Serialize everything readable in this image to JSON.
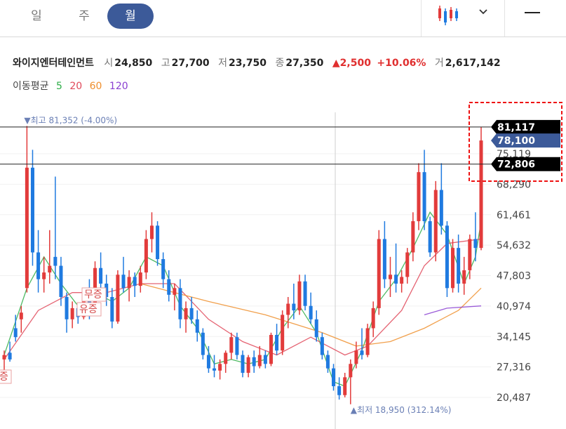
{
  "tabs": [
    {
      "label": "일"
    },
    {
      "label": "주"
    },
    {
      "label": "월",
      "active": true
    }
  ],
  "icons": {
    "chart_type": "candlestick-icon",
    "dropdown": "chevron-down-icon",
    "menu": "menu-icon"
  },
  "stock": {
    "name": "와이지엔터테인먼트",
    "open_label": "시",
    "open": "24,850",
    "high_label": "고",
    "high": "27,700",
    "low_label": "저",
    "low": "23,750",
    "close_label": "종",
    "close": "27,350",
    "change": "2,500",
    "change_pct": "+10.06%",
    "volume_label": "거",
    "volume": "2,617,142"
  },
  "ma_legend": {
    "label": "이동평균",
    "periods": [
      {
        "p": "5",
        "color": "#2fae49"
      },
      {
        "p": "20",
        "color": "#e0495a"
      },
      {
        "p": "60",
        "color": "#ef8f2d"
      },
      {
        "p": "120",
        "color": "#8a3fd1"
      }
    ]
  },
  "colors": {
    "up": "#e23b3b",
    "down": "#1f7ae0",
    "accent": "#3c5a99",
    "badge": "#000000"
  },
  "chart_data": {
    "type": "candlestick",
    "y_ticks": [
      "75,119",
      "68,290",
      "61,461",
      "54,632",
      "47,803",
      "40,974",
      "34,145",
      "27,316",
      "20,487"
    ],
    "ylim": [
      18000,
      82500
    ],
    "max_annotation": {
      "text": "최고 81,352 (-4.00%)",
      "value": 81352,
      "index": 4
    },
    "min_annotation": {
      "text": "최저 18,950 (312.14%)",
      "value": 18950,
      "index": 61
    },
    "price_levels": [
      {
        "label": "81,117",
        "value": 81117,
        "style": "black"
      },
      {
        "label": "78,100",
        "value": 78100,
        "style": "blue"
      },
      {
        "label": "72,806",
        "value": 72806,
        "style": "black"
      }
    ],
    "annotations": [
      {
        "text": "무증",
        "index": 15
      },
      {
        "text": "유증",
        "index": 15
      },
      {
        "text": "증",
        "index": 0
      }
    ],
    "candles": [
      {
        "o": 29000,
        "h": 31000,
        "l": 26000,
        "c": 30000
      },
      {
        "o": 30500,
        "h": 33000,
        "l": 28500,
        "c": 29000
      },
      {
        "o": 36000,
        "h": 39000,
        "l": 33000,
        "c": 34000
      },
      {
        "o": 38000,
        "h": 41000,
        "l": 35000,
        "c": 39500
      },
      {
        "o": 45000,
        "h": 81352,
        "l": 44000,
        "c": 72000
      },
      {
        "o": 72000,
        "h": 76000,
        "l": 50000,
        "c": 53000
      },
      {
        "o": 53000,
        "h": 58000,
        "l": 44000,
        "c": 47000
      },
      {
        "o": 47000,
        "h": 52000,
        "l": 44000,
        "c": 48500
      },
      {
        "o": 48500,
        "h": 58000,
        "l": 46000,
        "c": 50000
      },
      {
        "o": 52000,
        "h": 70000,
        "l": 47000,
        "c": 50000
      },
      {
        "o": 50000,
        "h": 52000,
        "l": 41000,
        "c": 43000
      },
      {
        "o": 43000,
        "h": 44000,
        "l": 35000,
        "c": 38000
      },
      {
        "o": 38000,
        "h": 42000,
        "l": 36000,
        "c": 40500
      },
      {
        "o": 40500,
        "h": 41000,
        "l": 37000,
        "c": 38500
      },
      {
        "o": 38500,
        "h": 45000,
        "l": 38000,
        "c": 44000
      },
      {
        "o": 44000,
        "h": 47000,
        "l": 38000,
        "c": 41000
      },
      {
        "o": 41000,
        "h": 51000,
        "l": 40000,
        "c": 49500
      },
      {
        "o": 49500,
        "h": 53000,
        "l": 45000,
        "c": 46000
      },
      {
        "o": 46000,
        "h": 48000,
        "l": 41000,
        "c": 43000
      },
      {
        "o": 43000,
        "h": 45000,
        "l": 36000,
        "c": 37500
      },
      {
        "o": 37500,
        "h": 49000,
        "l": 37000,
        "c": 48000
      },
      {
        "o": 48000,
        "h": 52000,
        "l": 44000,
        "c": 45000
      },
      {
        "o": 45000,
        "h": 49000,
        "l": 42000,
        "c": 47500
      },
      {
        "o": 47500,
        "h": 48500,
        "l": 43000,
        "c": 45500
      },
      {
        "o": 45500,
        "h": 50000,
        "l": 44000,
        "c": 48500
      },
      {
        "o": 48500,
        "h": 58000,
        "l": 47000,
        "c": 56000
      },
      {
        "o": 56000,
        "h": 62000,
        "l": 53000,
        "c": 59000
      },
      {
        "o": 59000,
        "h": 60000,
        "l": 50000,
        "c": 51500
      },
      {
        "o": 51500,
        "h": 53000,
        "l": 45000,
        "c": 47000
      },
      {
        "o": 47000,
        "h": 49000,
        "l": 42000,
        "c": 43500
      },
      {
        "o": 43500,
        "h": 46000,
        "l": 40000,
        "c": 45000
      },
      {
        "o": 45000,
        "h": 47000,
        "l": 36000,
        "c": 38000
      },
      {
        "o": 38000,
        "h": 42000,
        "l": 35000,
        "c": 40500
      },
      {
        "o": 40500,
        "h": 43000,
        "l": 37000,
        "c": 38000
      },
      {
        "o": 38000,
        "h": 40000,
        "l": 33000,
        "c": 35000
      },
      {
        "o": 35000,
        "h": 36000,
        "l": 29000,
        "c": 30000
      },
      {
        "o": 30000,
        "h": 32000,
        "l": 26000,
        "c": 27000
      },
      {
        "o": 27000,
        "h": 30000,
        "l": 25000,
        "c": 26500
      },
      {
        "o": 26500,
        "h": 29000,
        "l": 24500,
        "c": 28000
      },
      {
        "o": 28000,
        "h": 31000,
        "l": 26000,
        "c": 30500
      },
      {
        "o": 30500,
        "h": 35000,
        "l": 29000,
        "c": 34000
      },
      {
        "o": 34000,
        "h": 35000,
        "l": 29000,
        "c": 30000
      },
      {
        "o": 30000,
        "h": 31000,
        "l": 25000,
        "c": 26000
      },
      {
        "o": 26000,
        "h": 30000,
        "l": 25000,
        "c": 29500
      },
      {
        "o": 29500,
        "h": 31000,
        "l": 26000,
        "c": 27500
      },
      {
        "o": 27500,
        "h": 32000,
        "l": 27000,
        "c": 30000
      },
      {
        "o": 30000,
        "h": 31000,
        "l": 27000,
        "c": 28000
      },
      {
        "o": 28000,
        "h": 35000,
        "l": 27500,
        "c": 34500
      },
      {
        "o": 34500,
        "h": 37000,
        "l": 30000,
        "c": 31000
      },
      {
        "o": 31000,
        "h": 40000,
        "l": 30000,
        "c": 39000
      },
      {
        "o": 39000,
        "h": 43000,
        "l": 36000,
        "c": 41500
      },
      {
        "o": 41500,
        "h": 46000,
        "l": 38000,
        "c": 40000
      },
      {
        "o": 40000,
        "h": 48000,
        "l": 39000,
        "c": 46500
      },
      {
        "o": 46500,
        "h": 48000,
        "l": 40000,
        "c": 41000
      },
      {
        "o": 41000,
        "h": 44000,
        "l": 37000,
        "c": 38000
      },
      {
        "o": 38000,
        "h": 40000,
        "l": 33000,
        "c": 34000
      },
      {
        "o": 34000,
        "h": 35000,
        "l": 29000,
        "c": 30000
      },
      {
        "o": 30000,
        "h": 31000,
        "l": 26000,
        "c": 27000
      },
      {
        "o": 27000,
        "h": 28000,
        "l": 22000,
        "c": 23000
      },
      {
        "o": 23000,
        "h": 25000,
        "l": 20000,
        "c": 21000
      },
      {
        "o": 21000,
        "h": 26000,
        "l": 20500,
        "c": 25000
      },
      {
        "o": 25000,
        "h": 29000,
        "l": 18950,
        "c": 28000
      },
      {
        "o": 28000,
        "h": 33000,
        "l": 27000,
        "c": 31000
      },
      {
        "o": 31000,
        "h": 36000,
        "l": 29000,
        "c": 30000
      },
      {
        "o": 30000,
        "h": 37000,
        "l": 29500,
        "c": 36000
      },
      {
        "o": 36000,
        "h": 42000,
        "l": 34000,
        "c": 40500
      },
      {
        "o": 40500,
        "h": 58000,
        "l": 39000,
        "c": 56000
      },
      {
        "o": 56000,
        "h": 60000,
        "l": 45000,
        "c": 47000
      },
      {
        "o": 47000,
        "h": 52000,
        "l": 43000,
        "c": 48000
      },
      {
        "o": 48000,
        "h": 55000,
        "l": 44000,
        "c": 46000
      },
      {
        "o": 46000,
        "h": 49000,
        "l": 44000,
        "c": 47500
      },
      {
        "o": 47500,
        "h": 54000,
        "l": 46000,
        "c": 53000
      },
      {
        "o": 53000,
        "h": 62000,
        "l": 51000,
        "c": 60000
      },
      {
        "o": 60000,
        "h": 73000,
        "l": 58000,
        "c": 71000
      },
      {
        "o": 71000,
        "h": 76000,
        "l": 58000,
        "c": 60000
      },
      {
        "o": 60000,
        "h": 61000,
        "l": 52000,
        "c": 53000
      },
      {
        "o": 53000,
        "h": 69000,
        "l": 51000,
        "c": 67000
      },
      {
        "o": 67000,
        "h": 73000,
        "l": 57000,
        "c": 59000
      },
      {
        "o": 59000,
        "h": 60000,
        "l": 43000,
        "c": 45000
      },
      {
        "o": 45000,
        "h": 56000,
        "l": 44000,
        "c": 54000
      },
      {
        "o": 54000,
        "h": 57000,
        "l": 44000,
        "c": 46000
      },
      {
        "o": 46000,
        "h": 52000,
        "l": 43500,
        "c": 49000
      },
      {
        "o": 49000,
        "h": 57000,
        "l": 47000,
        "c": 56000
      },
      {
        "o": 56000,
        "h": 62000,
        "l": 51000,
        "c": 54000
      },
      {
        "o": 54000,
        "h": 81117,
        "l": 53500,
        "c": 78100
      }
    ],
    "ma_lines": [
      {
        "period": 5,
        "color": "#2fae49",
        "values": [
          [
            0,
            30000
          ],
          [
            4,
            45000
          ],
          [
            7,
            52000
          ],
          [
            10,
            46000
          ],
          [
            13,
            41000
          ],
          [
            16,
            44000
          ],
          [
            19,
            42000
          ],
          [
            22,
            45000
          ],
          [
            25,
            52000
          ],
          [
            28,
            50000
          ],
          [
            31,
            41000
          ],
          [
            34,
            36000
          ],
          [
            37,
            28000
          ],
          [
            40,
            29000
          ],
          [
            43,
            28000
          ],
          [
            46,
            29000
          ],
          [
            49,
            36000
          ],
          [
            52,
            41000
          ],
          [
            55,
            35000
          ],
          [
            58,
            24000
          ],
          [
            60,
            23000
          ],
          [
            63,
            31000
          ],
          [
            66,
            42000
          ],
          [
            69,
            47000
          ],
          [
            72,
            54000
          ],
          [
            75,
            62000
          ],
          [
            78,
            57000
          ],
          [
            81,
            46000
          ],
          [
            83,
            52000
          ],
          [
            84,
            60000
          ]
        ]
      },
      {
        "period": 20,
        "color": "#e0495a",
        "values": [
          [
            0,
            29000
          ],
          [
            6,
            40000
          ],
          [
            12,
            44000
          ],
          [
            18,
            44000
          ],
          [
            24,
            46000
          ],
          [
            30,
            46000
          ],
          [
            36,
            38000
          ],
          [
            42,
            33000
          ],
          [
            48,
            30000
          ],
          [
            54,
            34000
          ],
          [
            60,
            30000
          ],
          [
            64,
            32000
          ],
          [
            70,
            40000
          ],
          [
            74,
            50000
          ],
          [
            78,
            55000
          ],
          [
            84,
            56000
          ]
        ]
      },
      {
        "period": 60,
        "color": "#ef8f2d",
        "values": [
          [
            24,
            46000
          ],
          [
            36,
            42000
          ],
          [
            46,
            39000
          ],
          [
            56,
            35000
          ],
          [
            62,
            32000
          ],
          [
            68,
            33000
          ],
          [
            74,
            36000
          ],
          [
            80,
            40000
          ],
          [
            84,
            45000
          ]
        ]
      },
      {
        "period": 120,
        "color": "#8a3fd1",
        "values": [
          [
            74,
            39000
          ],
          [
            78,
            40500
          ],
          [
            84,
            41000
          ]
        ]
      }
    ]
  }
}
